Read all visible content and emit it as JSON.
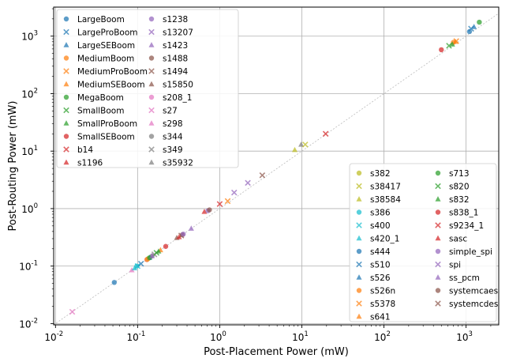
{
  "chart_data": {
    "type": "scatter",
    "title": "",
    "xlabel": "Post-Placement Power (mW)",
    "ylabel": "Post-Routing Power (mW)",
    "xscale": "log",
    "yscale": "log",
    "xlim": [
      0.0095,
      2500
    ],
    "ylim": [
      0.0095,
      3200
    ],
    "xticks": [
      "10",
      "10",
      "10",
      "10",
      "10",
      "10"
    ],
    "xtick_exponents": [
      "-2",
      "-1",
      "0",
      "1",
      "2",
      "3"
    ],
    "xtick_values": [
      0.01,
      0.1,
      1,
      10,
      100,
      1000
    ],
    "yticks": [
      "10",
      "10",
      "10",
      "10",
      "10",
      "10"
    ],
    "ytick_exponents": [
      "-2",
      "-1",
      "0",
      "1",
      "2",
      "3"
    ],
    "ytick_values": [
      0.01,
      0.1,
      1,
      10,
      100,
      1000
    ],
    "grid": true,
    "reference_line": "y = x (dotted)",
    "legends": [
      {
        "placement": "top-left",
        "columns": 2,
        "entries_per_column": 12
      },
      {
        "placement": "bottom-right",
        "columns": 2,
        "entries_per_column": 12
      }
    ],
    "series": [
      {
        "name": "LargeBoom",
        "color": "#1f77b4",
        "marker": "circle",
        "x": [
          1100
        ],
        "y": [
          1200
        ]
      },
      {
        "name": "LargeProBoom",
        "color": "#1f77b4",
        "marker": "x",
        "x": [
          1150
        ],
        "y": [
          1350
        ]
      },
      {
        "name": "LargeSEBoom",
        "color": "#1f77b4",
        "marker": "triangle",
        "x": [
          1250
        ],
        "y": [
          1450
        ]
      },
      {
        "name": "MediumBoom",
        "color": "#ff7f0e",
        "marker": "circle",
        "x": [
          700
        ],
        "y": [
          780
        ]
      },
      {
        "name": "MediumProBoom",
        "color": "#ff7f0e",
        "marker": "x",
        "x": [
          760
        ],
        "y": [
          820
        ]
      },
      {
        "name": "MediumSEBoom",
        "color": "#ff7f0e",
        "marker": "triangle",
        "x": [
          740
        ],
        "y": [
          800
        ]
      },
      {
        "name": "MegaBoom",
        "color": "#2ca02c",
        "marker": "circle",
        "x": [
          1450
        ],
        "y": [
          1750
        ]
      },
      {
        "name": "SmallBoom",
        "color": "#2ca02c",
        "marker": "x",
        "x": [
          620
        ],
        "y": [
          680
        ]
      },
      {
        "name": "SmallProBoom",
        "color": "#2ca02c",
        "marker": "triangle",
        "x": [
          680
        ],
        "y": [
          720
        ]
      },
      {
        "name": "SmallSEBoom",
        "color": "#d62728",
        "marker": "circle",
        "x": [
          500
        ],
        "y": [
          580
        ]
      },
      {
        "name": "b14",
        "color": "#d62728",
        "marker": "x",
        "x": [
          19.5
        ],
        "y": [
          20
        ]
      },
      {
        "name": "s1196",
        "color": "#d62728",
        "marker": "triangle",
        "x": [
          0.65
        ],
        "y": [
          0.88
        ]
      },
      {
        "name": "s1238",
        "color": "#9467bd",
        "marker": "circle",
        "x": [
          0.72
        ],
        "y": [
          0.92
        ]
      },
      {
        "name": "s13207",
        "color": "#9467bd",
        "marker": "x",
        "x": [
          2.2
        ],
        "y": [
          2.8
        ]
      },
      {
        "name": "s1423",
        "color": "#9467bd",
        "marker": "triangle",
        "x": [
          0.45
        ],
        "y": [
          0.45
        ]
      },
      {
        "name": "s1488",
        "color": "#8c564b",
        "marker": "circle",
        "x": [
          0.35
        ],
        "y": [
          0.35
        ]
      },
      {
        "name": "s1494",
        "color": "#8c564b",
        "marker": "x",
        "x": [
          0.34
        ],
        "y": [
          0.34
        ]
      },
      {
        "name": "s15850",
        "color": "#8c564b",
        "marker": "triangle",
        "x": [
          0.3
        ],
        "y": [
          0.31
        ]
      },
      {
        "name": "s208_1",
        "color": "#e377c2",
        "marker": "circle",
        "x": [
          0.13
        ],
        "y": [
          0.13
        ]
      },
      {
        "name": "s27",
        "color": "#e377c2",
        "marker": "x",
        "x": [
          0.016
        ],
        "y": [
          0.016
        ]
      },
      {
        "name": "s298",
        "color": "#e377c2",
        "marker": "triangle",
        "x": [
          0.085
        ],
        "y": [
          0.085
        ]
      },
      {
        "name": "s344",
        "color": "#7f7f7f",
        "marker": "circle",
        "x": [
          0.15
        ],
        "y": [
          0.15
        ]
      },
      {
        "name": "s349",
        "color": "#7f7f7f",
        "marker": "x",
        "x": [
          0.16
        ],
        "y": [
          0.16
        ]
      },
      {
        "name": "s35932",
        "color": "#7f7f7f",
        "marker": "triangle",
        "x": [
          9.8
        ],
        "y": [
          13
        ]
      },
      {
        "name": "s382",
        "color": "#bcbd22",
        "marker": "circle",
        "x": [
          0.135
        ],
        "y": [
          0.135
        ]
      },
      {
        "name": "s38417",
        "color": "#bcbd22",
        "marker": "x",
        "x": [
          11
        ],
        "y": [
          13
        ]
      },
      {
        "name": "s38584",
        "color": "#bcbd22",
        "marker": "triangle",
        "x": [
          8.2
        ],
        "y": [
          10.5
        ]
      },
      {
        "name": "s386",
        "color": "#17becf",
        "marker": "circle",
        "x": [
          0.098
        ],
        "y": [
          0.1
        ]
      },
      {
        "name": "s400",
        "color": "#17becf",
        "marker": "x",
        "x": [
          0.1
        ],
        "y": [
          0.1
        ]
      },
      {
        "name": "s420_1",
        "color": "#17becf",
        "marker": "triangle",
        "x": [
          0.092
        ],
        "y": [
          0.092
        ]
      },
      {
        "name": "s444",
        "color": "#1f77b4",
        "marker": "circle",
        "x": [
          0.052
        ],
        "y": [
          0.052
        ]
      },
      {
        "name": "s510",
        "color": "#1f77b4",
        "marker": "x",
        "x": [
          0.11
        ],
        "y": [
          0.11
        ]
      },
      {
        "name": "s526",
        "color": "#1f77b4",
        "marker": "triangle",
        "x": [
          0.14
        ],
        "y": [
          0.14
        ]
      },
      {
        "name": "s526n",
        "color": "#ff7f0e",
        "marker": "circle",
        "x": [
          0.13
        ],
        "y": [
          0.13
        ]
      },
      {
        "name": "s5378",
        "color": "#ff7f0e",
        "marker": "x",
        "x": [
          1.25
        ],
        "y": [
          1.35
        ]
      },
      {
        "name": "s641",
        "color": "#ff7f0e",
        "marker": "triangle",
        "x": [
          0.19
        ],
        "y": [
          0.19
        ]
      },
      {
        "name": "s713",
        "color": "#2ca02c",
        "marker": "circle",
        "x": [
          0.14
        ],
        "y": [
          0.14
        ]
      },
      {
        "name": "s820",
        "color": "#2ca02c",
        "marker": "x",
        "x": [
          0.17
        ],
        "y": [
          0.17
        ]
      },
      {
        "name": "s832",
        "color": "#2ca02c",
        "marker": "triangle",
        "x": [
          0.18
        ],
        "y": [
          0.18
        ]
      },
      {
        "name": "s838_1",
        "color": "#d62728",
        "marker": "circle",
        "x": [
          0.22
        ],
        "y": [
          0.22
        ]
      },
      {
        "name": "s9234_1",
        "color": "#d62728",
        "marker": "x",
        "x": [
          1.0
        ],
        "y": [
          1.2
        ]
      },
      {
        "name": "sasc",
        "color": "#d62728",
        "marker": "triangle",
        "x": [
          0.32
        ],
        "y": [
          0.32
        ]
      },
      {
        "name": "simple_spi",
        "color": "#9467bd",
        "marker": "circle",
        "x": [
          0.36
        ],
        "y": [
          0.36
        ]
      },
      {
        "name": "spi",
        "color": "#9467bd",
        "marker": "x",
        "x": [
          1.5
        ],
        "y": [
          1.9
        ]
      },
      {
        "name": "ss_pcm",
        "color": "#9467bd",
        "marker": "triangle",
        "x": [
          0.15
        ],
        "y": [
          0.15
        ]
      },
      {
        "name": "systemcaes",
        "color": "#8c564b",
        "marker": "circle",
        "x": [
          0.75
        ],
        "y": [
          0.95
        ]
      },
      {
        "name": "systemcdes",
        "color": "#8c564b",
        "marker": "x",
        "x": [
          3.3
        ],
        "y": [
          3.8
        ]
      }
    ]
  }
}
